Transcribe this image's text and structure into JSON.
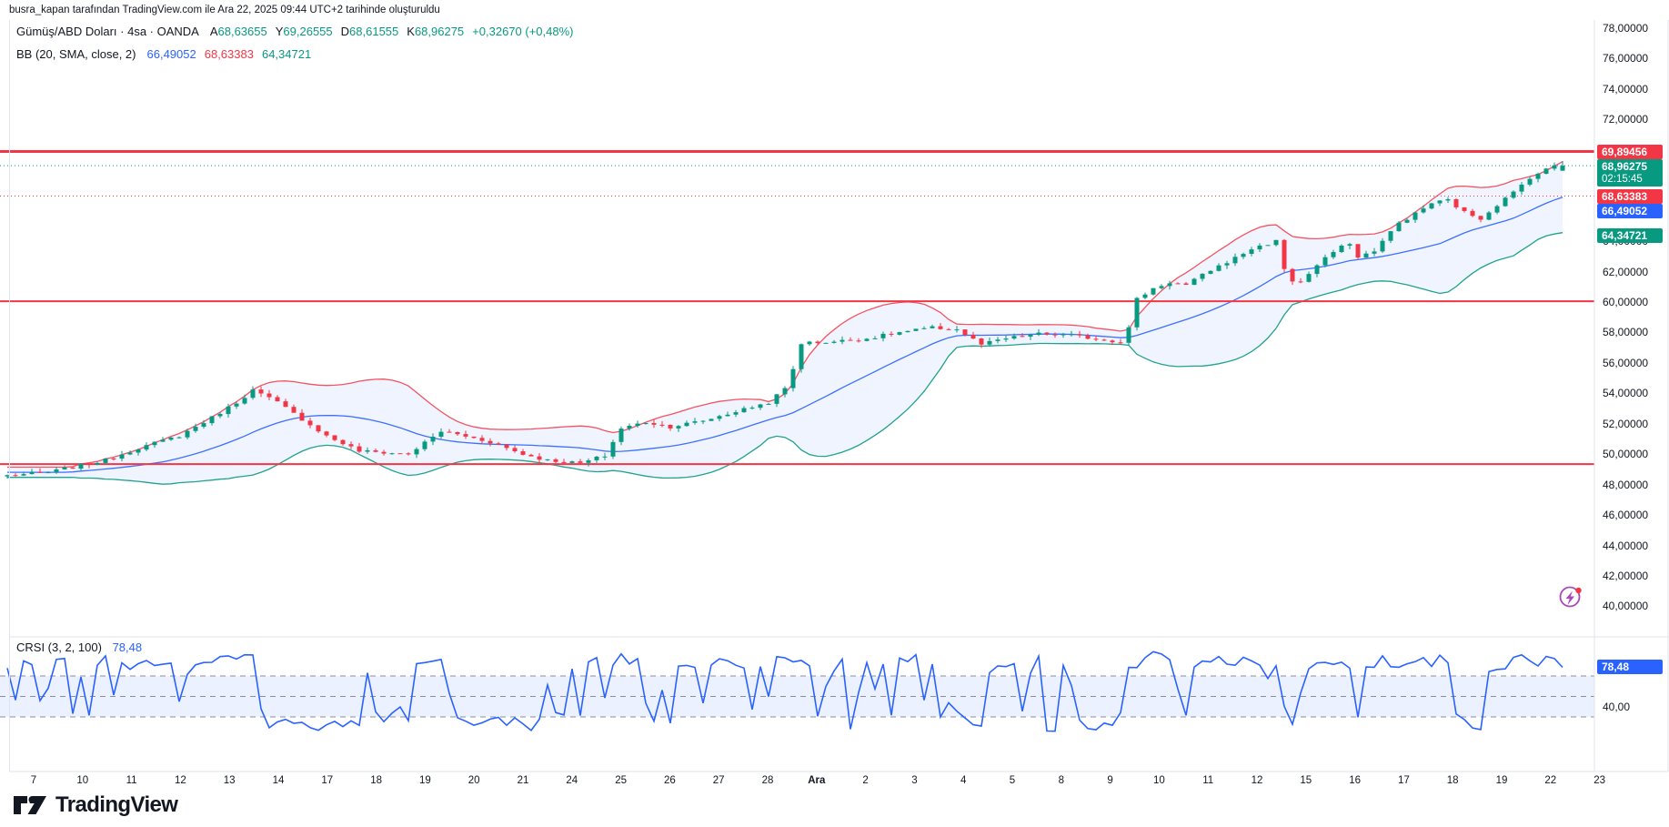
{
  "attribution": "busra_kapan tarafından TradingView.com ile Ara 22, 2025 09:44 UTC+2 tarihinde oluşturuldu",
  "header": {
    "symbol_title": "Gümüş/ABD Doları · 4sa · OANDA",
    "ohlc_fields": [
      {
        "label": "A",
        "value": "68,63655"
      },
      {
        "label": "Y",
        "value": "69,26555"
      },
      {
        "label": "D",
        "value": "68,61555"
      },
      {
        "label": "K",
        "value": "68,96275"
      }
    ],
    "change": "+0,32670 (+0,48%)",
    "bb_label": "BB (20, SMA, close, 2)",
    "bb_values": [
      {
        "value": "66,49052",
        "color": "#2962FF"
      },
      {
        "value": "68,63383",
        "color": "#F23645"
      },
      {
        "value": "64,34721",
        "color": "#089981"
      }
    ]
  },
  "crsi": {
    "label": "CRSI (3, 2, 100)",
    "value": "78,48",
    "badge": "78,48",
    "axis_label": "40,00"
  },
  "price_axis": {
    "ticks": [
      {
        "text": "78,00000",
        "price": 78
      },
      {
        "text": "76,00000",
        "price": 76
      },
      {
        "text": "74,00000",
        "price": 74
      },
      {
        "text": "72,00000",
        "price": 72
      },
      {
        "text": "70,00000",
        "price": 70
      },
      {
        "text": "68,00000",
        "price": 68
      },
      {
        "text": "66,00000",
        "price": 66
      },
      {
        "text": "64,00000",
        "price": 64
      },
      {
        "text": "62,00000",
        "price": 62
      },
      {
        "text": "60,00000",
        "price": 60
      },
      {
        "text": "58,00000",
        "price": 58
      },
      {
        "text": "56,00000",
        "price": 56
      },
      {
        "text": "54,00000",
        "price": 54
      },
      {
        "text": "52,00000",
        "price": 52
      },
      {
        "text": "50,00000",
        "price": 50
      },
      {
        "text": "48,00000",
        "price": 48
      },
      {
        "text": "46,00000",
        "price": 46
      },
      {
        "text": "44,00000",
        "price": 44
      },
      {
        "text": "42,00000",
        "price": 42
      },
      {
        "text": "40,00000",
        "price": 40
      }
    ],
    "badges": [
      {
        "text": "69,89456",
        "color": "#F23645"
      },
      {
        "text": "68,96275",
        "countdown": "02:15:45",
        "color": "#089981"
      },
      {
        "text": "68,63383",
        "color": "#F23645"
      },
      {
        "text": "66,49052",
        "color": "#2962FF"
      },
      {
        "text": "64,34721",
        "color": "#089981"
      }
    ]
  },
  "time_axis": {
    "labels": [
      {
        "text": "7"
      },
      {
        "text": "10"
      },
      {
        "text": "11"
      },
      {
        "text": "12"
      },
      {
        "text": "13"
      },
      {
        "text": "14"
      },
      {
        "text": "17"
      },
      {
        "text": "18"
      },
      {
        "text": "19"
      },
      {
        "text": "20"
      },
      {
        "text": "21"
      },
      {
        "text": "24"
      },
      {
        "text": "25"
      },
      {
        "text": "26"
      },
      {
        "text": "27"
      },
      {
        "text": "28"
      },
      {
        "text": "Ara",
        "bold": true
      },
      {
        "text": "2"
      },
      {
        "text": "3"
      },
      {
        "text": "4"
      },
      {
        "text": "5"
      },
      {
        "text": "8"
      },
      {
        "text": "9"
      },
      {
        "text": "10"
      },
      {
        "text": "11"
      },
      {
        "text": "12"
      },
      {
        "text": "15"
      },
      {
        "text": "16"
      },
      {
        "text": "17"
      },
      {
        "text": "18"
      },
      {
        "text": "19"
      },
      {
        "text": "22"
      },
      {
        "text": "23"
      }
    ]
  },
  "logo_text": "TradingView",
  "colors": {
    "up": "#089981",
    "down": "#F23645",
    "bb_upper": "#F23645",
    "bb_basis": "#2962FF",
    "bb_lower": "#089981",
    "band_fill": "rgba(41,98,255,0.07)",
    "level_red": "#F23645",
    "crsi_line": "#2962FF",
    "crsi_band_fill": "rgba(41,98,255,0.09)",
    "crsi_dash": "#8A8E98",
    "separator": "#E0E3EB",
    "text": "#131722",
    "accent_purple": "#AB47BC"
  },
  "chart_data": [
    {
      "type": "candlestick",
      "title": "Gümüş/ABD Doları (Silver / U.S. Dollar)",
      "timeframe": "4sa",
      "exchange": "OANDA",
      "ylim": [
        38,
        79
      ],
      "y_ticks": [
        40,
        42,
        44,
        46,
        48,
        50,
        52,
        54,
        56,
        58,
        60,
        62,
        64,
        66,
        68,
        70,
        72,
        74,
        76,
        78
      ],
      "x_day_labels": [
        "7",
        "10",
        "11",
        "12",
        "13",
        "14",
        "17",
        "18",
        "19",
        "20",
        "21",
        "24",
        "25",
        "26",
        "27",
        "28",
        "Ara",
        "2",
        "3",
        "4",
        "5",
        "8",
        "9",
        "10",
        "11",
        "12",
        "15",
        "16",
        "17",
        "18",
        "19",
        "22",
        "23"
      ],
      "bars_per_day": 6,
      "total_bars": 191,
      "price_path_keyframes": [
        [
          0,
          48.6
        ],
        [
          5,
          48.8
        ],
        [
          12,
          49.6
        ],
        [
          16,
          50.4
        ],
        [
          21,
          51.2
        ],
        [
          25,
          52.4
        ],
        [
          28,
          53.4
        ],
        [
          30,
          54.2
        ],
        [
          33,
          53.4
        ],
        [
          36,
          52.3
        ],
        [
          39,
          51.2
        ],
        [
          43,
          50.2
        ],
        [
          49,
          50.0
        ],
        [
          53,
          51.5
        ],
        [
          55,
          51.3
        ],
        [
          59,
          50.8
        ],
        [
          63,
          50.0
        ],
        [
          66,
          49.6
        ],
        [
          70,
          49.4
        ],
        [
          73,
          49.9
        ],
        [
          75,
          51.7
        ],
        [
          78,
          52.1
        ],
        [
          81,
          51.8
        ],
        [
          85,
          52.2
        ],
        [
          89,
          52.8
        ],
        [
          93,
          53.4
        ],
        [
          95,
          54.3
        ],
        [
          96,
          55.6
        ],
        [
          97,
          57.3
        ],
        [
          101,
          57.4
        ],
        [
          105,
          57.6
        ],
        [
          109,
          58.0
        ],
        [
          113,
          58.3
        ],
        [
          116,
          58.2
        ],
        [
          119,
          57.2
        ],
        [
          122,
          57.6
        ],
        [
          126,
          57.9
        ],
        [
          130,
          57.8
        ],
        [
          134,
          57.5
        ],
        [
          136,
          57.4
        ],
        [
          137,
          58.3
        ],
        [
          138,
          60.2
        ],
        [
          140,
          60.9
        ],
        [
          142,
          61.3
        ],
        [
          144,
          61.1
        ],
        [
          147,
          62.1
        ],
        [
          150,
          62.9
        ],
        [
          152,
          63.5
        ],
        [
          155,
          64.0
        ],
        [
          156,
          62.2
        ],
        [
          157,
          61.4
        ],
        [
          158,
          61.3
        ],
        [
          160,
          62.4
        ],
        [
          162,
          63.3
        ],
        [
          164,
          63.9
        ],
        [
          165,
          62.9
        ],
        [
          167,
          63.4
        ],
        [
          170,
          65.2
        ],
        [
          172,
          65.8
        ],
        [
          174,
          66.5
        ],
        [
          176,
          66.7
        ],
        [
          178,
          65.9
        ],
        [
          180,
          65.5
        ],
        [
          182,
          66.4
        ],
        [
          184,
          67.2
        ],
        [
          186,
          68.2
        ],
        [
          188,
          68.7
        ],
        [
          189,
          69.0
        ],
        [
          190,
          68.96275
        ]
      ],
      "current_bar": {
        "open": 68.63655,
        "high": 69.26555,
        "low": 68.61555,
        "close": 68.96275,
        "change": "+0,32670",
        "change_pct": "+0,48%",
        "countdown": "02:15:45"
      },
      "levels": [
        {
          "price": 69.89456,
          "style": "solid",
          "color": "#F23645",
          "width": 3
        },
        {
          "price": 68.96275,
          "style": "dotted",
          "color": "#089981",
          "width": 1
        },
        {
          "price": 68.63383,
          "style": "dotted",
          "color": "#F23645",
          "width": 1
        },
        {
          "price": 60.05322,
          "style": "solid",
          "color": "#F23645",
          "width": 2
        },
        {
          "price": 49.34155,
          "style": "solid",
          "color": "#F23645",
          "width": 2
        }
      ],
      "bollinger": {
        "length": 20,
        "source": "close",
        "mult": 2,
        "basis": 66.49052,
        "upper": 68.63383,
        "lower": 64.34721
      }
    },
    {
      "type": "line",
      "name": "CRSI (3, 2, 100)",
      "last_value": 78.48,
      "range": [
        0,
        100
      ],
      "levels": [
        70,
        50,
        30
      ],
      "band": [
        30,
        70
      ],
      "visible_axis_label": 40
    }
  ]
}
